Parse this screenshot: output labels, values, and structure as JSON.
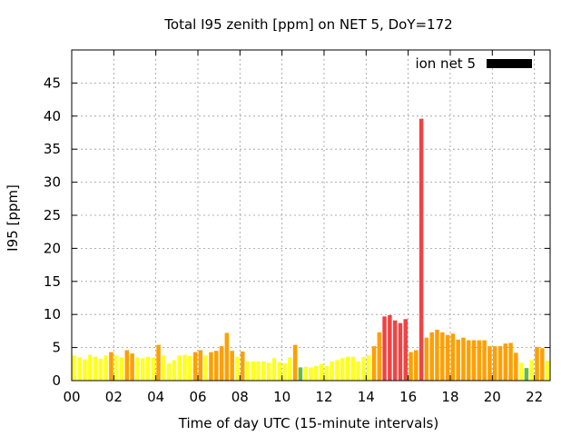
{
  "chart_data": {
    "type": "bar",
    "title": "Total I95 zenith [ppm] on NET 5, DoY=172",
    "xlabel": "Time of day UTC (15-minute intervals)",
    "ylabel": "I95 [ppm]",
    "legend": {
      "label": "ion net 5",
      "color": "#000000",
      "position": "top-right"
    },
    "grid": true,
    "xlim": [
      0,
      22.75
    ],
    "ylim": [
      0,
      50
    ],
    "x_ticks": [
      0,
      2,
      4,
      6,
      8,
      10,
      12,
      14,
      16,
      18,
      20,
      22
    ],
    "x_tick_labels": [
      "00",
      "02",
      "04",
      "06",
      "08",
      "10",
      "12",
      "14",
      "16",
      "18",
      "20",
      "22"
    ],
    "y_ticks": [
      0,
      5,
      10,
      15,
      20,
      25,
      30,
      35,
      40,
      45
    ],
    "y_tick_labels": [
      "0",
      "5",
      "10",
      "15",
      "20",
      "25",
      "30",
      "35",
      "40",
      "45"
    ],
    "interval_hours": 0.25,
    "colors": {
      "green": "#66bb44",
      "yellow": "#ffff22",
      "orange": "#ff9f00",
      "red": "#ee4444"
    },
    "values": [
      3.8,
      3.5,
      3.2,
      3.9,
      3.6,
      3.3,
      3.8,
      4.3,
      3.8,
      3.5,
      4.6,
      4.1,
      3.5,
      3.4,
      3.6,
      3.5,
      5.4,
      3.8,
      2.6,
      3.1,
      3.8,
      3.9,
      3.7,
      4.3,
      4.6,
      3.8,
      4.3,
      4.5,
      5.2,
      7.2,
      4.5,
      3.6,
      4.4,
      2.9,
      2.9,
      2.9,
      2.9,
      2.7,
      3.4,
      2.8,
      2.6,
      3.5,
      5.4,
      2.0,
      2.1,
      2.0,
      2.2,
      2.5,
      2.2,
      2.9,
      3.1,
      3.4,
      3.6,
      3.6,
      2.9,
      3.6,
      3.8,
      5.2,
      7.3,
      9.7,
      9.9,
      9.1,
      8.7,
      9.3,
      4.3,
      4.6,
      39.6,
      6.5,
      7.3,
      7.7,
      7.3,
      6.9,
      7.1,
      6.2,
      6.5,
      6.1,
      6.1,
      6.1,
      6.1,
      5.2,
      5.2,
      5.2,
      5.6,
      5.7,
      4.2,
      2.7,
      1.9,
      3.1,
      5.1,
      4.9,
      3.0
    ],
    "bar_colors": [
      "yellow",
      "yellow",
      "yellow",
      "yellow",
      "yellow",
      "yellow",
      "yellow",
      "orange",
      "yellow",
      "yellow",
      "orange",
      "orange",
      "yellow",
      "yellow",
      "yellow",
      "yellow",
      "orange",
      "yellow",
      "yellow",
      "yellow",
      "yellow",
      "yellow",
      "yellow",
      "orange",
      "orange",
      "yellow",
      "orange",
      "orange",
      "orange",
      "orange",
      "orange",
      "yellow",
      "orange",
      "yellow",
      "yellow",
      "yellow",
      "yellow",
      "yellow",
      "yellow",
      "yellow",
      "yellow",
      "yellow",
      "orange",
      "green",
      "yellow",
      "yellow",
      "yellow",
      "yellow",
      "yellow",
      "yellow",
      "yellow",
      "yellow",
      "yellow",
      "yellow",
      "yellow",
      "yellow",
      "yellow",
      "orange",
      "orange",
      "red",
      "red",
      "red",
      "red",
      "red",
      "orange",
      "orange",
      "red",
      "orange",
      "orange",
      "orange",
      "orange",
      "orange",
      "orange",
      "orange",
      "orange",
      "orange",
      "orange",
      "orange",
      "orange",
      "orange",
      "orange",
      "orange",
      "orange",
      "orange",
      "orange",
      "yellow",
      "green",
      "yellow",
      "orange",
      "orange",
      "yellow"
    ]
  }
}
